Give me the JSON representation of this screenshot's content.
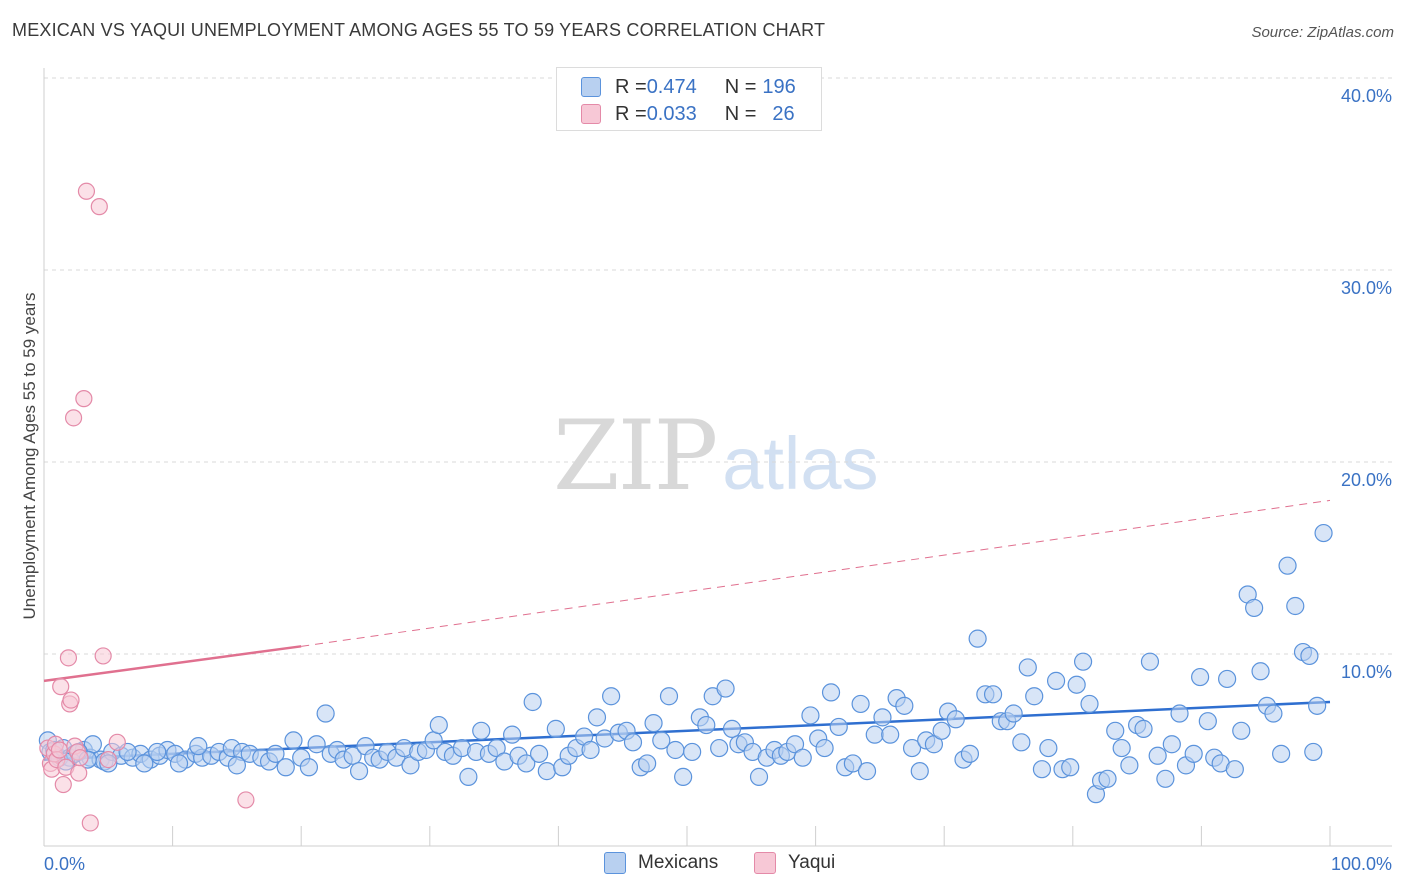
{
  "title": "MEXICAN VS YAQUI UNEMPLOYMENT AMONG AGES 55 TO 59 YEARS CORRELATION CHART",
  "source": "Source: ZipAtlas.com",
  "watermark": {
    "zip": "ZIP",
    "atlas": "atlas"
  },
  "legend": {
    "rows": [
      {
        "r_label": "R = ",
        "r_value": "0.474",
        "n_label": "N = ",
        "n_value": "196"
      },
      {
        "r_label": "R = ",
        "r_value": "0.033",
        "n_label": "N = ",
        "n_value": "26"
      }
    ]
  },
  "bottom_legend": {
    "mexicans": "Mexicans",
    "yaqui": "Yaqui"
  },
  "colors": {
    "blue_fill": "#b8d0f0",
    "blue_stroke": "#5b93dc",
    "blue_line": "#2f6fd0",
    "pink_fill": "#f7c8d6",
    "pink_stroke": "#e48aa8",
    "pink_line": "#e0708f",
    "grid": "#d8d8d8",
    "axis_label": "#3a72c4"
  },
  "chart_data": {
    "type": "scatter",
    "title": "MEXICAN VS YAQUI UNEMPLOYMENT AMONG AGES 55 TO 59 YEARS CORRELATION CHART",
    "xlabel": "",
    "ylabel": "Unemployment Among Ages 55 to 59 years",
    "xlim": [
      0,
      100
    ],
    "ylim": [
      0,
      40
    ],
    "x_tick_labels": [
      "0.0%",
      "100.0%"
    ],
    "y_ticks": [
      10,
      20,
      30,
      40
    ],
    "y_tick_labels": [
      "10.0%",
      "20.0%",
      "30.0%",
      "40.0%"
    ],
    "series": [
      {
        "name": "Mexicans",
        "color": "blue",
        "R": 0.474,
        "N": 196,
        "trend": {
          "x": [
            0,
            100
          ],
          "y": [
            4.5,
            7.5
          ],
          "dashed_extension": false
        },
        "points": [
          [
            0.3,
            5.5
          ],
          [
            0.5,
            4.9
          ],
          [
            0.8,
            5.0
          ],
          [
            1.2,
            4.6
          ],
          [
            1.5,
            5.1
          ],
          [
            2.0,
            4.6
          ],
          [
            2.4,
            4.8
          ],
          [
            3.1,
            5.0
          ],
          [
            3.6,
            4.6
          ],
          [
            3.8,
            5.3
          ],
          [
            4.4,
            4.5
          ],
          [
            4.7,
            4.4
          ],
          [
            5.3,
            4.9
          ],
          [
            6.0,
            4.7
          ],
          [
            6.9,
            4.6
          ],
          [
            7.5,
            4.8
          ],
          [
            8.3,
            4.5
          ],
          [
            9.0,
            4.7
          ],
          [
            9.6,
            5.0
          ],
          [
            10.2,
            4.8
          ],
          [
            11.0,
            4.5
          ],
          [
            11.8,
            4.8
          ],
          [
            12.3,
            4.6
          ],
          [
            13.0,
            4.7
          ],
          [
            13.6,
            4.9
          ],
          [
            14.3,
            4.6
          ],
          [
            14.6,
            5.1
          ],
          [
            15.4,
            4.9
          ],
          [
            16.0,
            4.8
          ],
          [
            16.9,
            4.6
          ],
          [
            17.5,
            4.4
          ],
          [
            18.0,
            4.8
          ],
          [
            18.8,
            4.1
          ],
          [
            19.4,
            5.5
          ],
          [
            20.0,
            4.6
          ],
          [
            20.6,
            4.1
          ],
          [
            21.2,
            5.3
          ],
          [
            21.9,
            6.9
          ],
          [
            22.3,
            4.8
          ],
          [
            22.8,
            5.0
          ],
          [
            23.3,
            4.5
          ],
          [
            24.0,
            4.7
          ],
          [
            24.5,
            3.9
          ],
          [
            25.0,
            5.2
          ],
          [
            25.6,
            4.6
          ],
          [
            26.1,
            4.5
          ],
          [
            26.7,
            4.9
          ],
          [
            27.4,
            4.6
          ],
          [
            28.0,
            5.1
          ],
          [
            28.5,
            4.2
          ],
          [
            29.1,
            4.9
          ],
          [
            29.7,
            5.0
          ],
          [
            30.3,
            5.5
          ],
          [
            30.7,
            6.3
          ],
          [
            31.2,
            4.9
          ],
          [
            31.8,
            4.7
          ],
          [
            32.5,
            5.1
          ],
          [
            33.0,
            3.6
          ],
          [
            33.6,
            4.9
          ],
          [
            34.0,
            6.0
          ],
          [
            34.6,
            4.8
          ],
          [
            35.2,
            5.1
          ],
          [
            35.8,
            4.4
          ],
          [
            36.4,
            5.8
          ],
          [
            36.9,
            4.7
          ],
          [
            37.5,
            4.3
          ],
          [
            38.0,
            7.5
          ],
          [
            38.5,
            4.8
          ],
          [
            39.1,
            3.9
          ],
          [
            39.8,
            6.1
          ],
          [
            40.3,
            4.1
          ],
          [
            40.8,
            4.7
          ],
          [
            41.4,
            5.1
          ],
          [
            42.0,
            5.7
          ],
          [
            42.5,
            5.0
          ],
          [
            43.0,
            6.7
          ],
          [
            43.6,
            5.6
          ],
          [
            44.1,
            7.8
          ],
          [
            44.7,
            5.9
          ],
          [
            45.3,
            6.0
          ],
          [
            45.8,
            5.4
          ],
          [
            46.4,
            4.1
          ],
          [
            46.9,
            4.3
          ],
          [
            47.4,
            6.4
          ],
          [
            48.0,
            5.5
          ],
          [
            48.6,
            7.8
          ],
          [
            49.1,
            5.0
          ],
          [
            49.7,
            3.6
          ],
          [
            50.4,
            4.9
          ],
          [
            51.0,
            6.7
          ],
          [
            51.5,
            6.3
          ],
          [
            52.0,
            7.8
          ],
          [
            52.5,
            5.1
          ],
          [
            53.0,
            8.2
          ],
          [
            53.5,
            6.1
          ],
          [
            54.0,
            5.3
          ],
          [
            54.5,
            5.4
          ],
          [
            55.1,
            4.9
          ],
          [
            55.6,
            3.6
          ],
          [
            56.2,
            4.6
          ],
          [
            56.8,
            5.0
          ],
          [
            57.3,
            4.7
          ],
          [
            57.8,
            4.9
          ],
          [
            58.4,
            5.3
          ],
          [
            59.0,
            4.6
          ],
          [
            59.6,
            6.8
          ],
          [
            60.2,
            5.6
          ],
          [
            60.7,
            5.1
          ],
          [
            61.2,
            8.0
          ],
          [
            61.8,
            6.2
          ],
          [
            62.3,
            4.1
          ],
          [
            62.9,
            4.3
          ],
          [
            63.5,
            7.4
          ],
          [
            64.0,
            3.9
          ],
          [
            64.6,
            5.8
          ],
          [
            65.2,
            6.7
          ],
          [
            65.8,
            5.8
          ],
          [
            66.3,
            7.7
          ],
          [
            66.9,
            7.3
          ],
          [
            67.5,
            5.1
          ],
          [
            68.1,
            3.9
          ],
          [
            68.6,
            5.5
          ],
          [
            69.2,
            5.3
          ],
          [
            69.8,
            6.0
          ],
          [
            70.3,
            7.0
          ],
          [
            70.9,
            6.6
          ],
          [
            71.5,
            4.5
          ],
          [
            72.0,
            4.8
          ],
          [
            72.6,
            10.8
          ],
          [
            73.2,
            7.9
          ],
          [
            73.8,
            7.9
          ],
          [
            74.4,
            6.5
          ],
          [
            74.9,
            6.5
          ],
          [
            75.4,
            6.9
          ],
          [
            76.0,
            5.4
          ],
          [
            76.5,
            9.3
          ],
          [
            77.0,
            7.8
          ],
          [
            77.6,
            4.0
          ],
          [
            78.1,
            5.1
          ],
          [
            78.7,
            8.6
          ],
          [
            79.2,
            4.0
          ],
          [
            79.8,
            4.1
          ],
          [
            80.3,
            8.4
          ],
          [
            80.8,
            9.6
          ],
          [
            81.3,
            7.4
          ],
          [
            81.8,
            2.7
          ],
          [
            82.2,
            3.4
          ],
          [
            82.7,
            3.5
          ],
          [
            83.3,
            6.0
          ],
          [
            83.8,
            5.1
          ],
          [
            84.4,
            4.2
          ],
          [
            85.0,
            6.3
          ],
          [
            85.5,
            6.1
          ],
          [
            86.0,
            9.6
          ],
          [
            86.6,
            4.7
          ],
          [
            87.2,
            3.5
          ],
          [
            87.7,
            5.3
          ],
          [
            88.3,
            6.9
          ],
          [
            88.8,
            4.2
          ],
          [
            89.4,
            4.8
          ],
          [
            89.9,
            8.8
          ],
          [
            90.5,
            6.5
          ],
          [
            91.0,
            4.6
          ],
          [
            91.5,
            4.3
          ],
          [
            92.0,
            8.7
          ],
          [
            92.6,
            4.0
          ],
          [
            93.1,
            6.0
          ],
          [
            93.6,
            13.1
          ],
          [
            94.1,
            12.4
          ],
          [
            94.6,
            9.1
          ],
          [
            95.1,
            7.3
          ],
          [
            95.6,
            6.9
          ],
          [
            96.2,
            4.8
          ],
          [
            96.7,
            14.6
          ],
          [
            97.3,
            12.5
          ],
          [
            97.9,
            10.1
          ],
          [
            98.4,
            9.9
          ],
          [
            99.0,
            7.3
          ],
          [
            99.5,
            16.3
          ],
          [
            98.7,
            4.9
          ],
          [
            1.7,
            4.4
          ],
          [
            2.7,
            4.9
          ],
          [
            3.4,
            4.5
          ],
          [
            5.0,
            4.3
          ],
          [
            6.5,
            4.9
          ],
          [
            7.8,
            4.3
          ],
          [
            8.8,
            4.9
          ],
          [
            10.5,
            4.3
          ],
          [
            12.0,
            5.2
          ],
          [
            15.0,
            4.2
          ]
        ]
      },
      {
        "name": "Yaqui",
        "color": "pink",
        "R": 0.033,
        "N": 26,
        "trend": {
          "x": [
            0,
            20
          ],
          "y": [
            8.6,
            10.4
          ],
          "dashed_extension": {
            "x": [
              20,
              100
            ],
            "y": [
              10.4,
              18.0
            ]
          }
        },
        "points": [
          [
            0.3,
            5.1
          ],
          [
            0.5,
            4.3
          ],
          [
            0.6,
            4.0
          ],
          [
            0.8,
            4.8
          ],
          [
            0.9,
            5.3
          ],
          [
            1.0,
            4.5
          ],
          [
            1.2,
            5.0
          ],
          [
            1.3,
            8.3
          ],
          [
            1.5,
            3.2
          ],
          [
            1.7,
            4.1
          ],
          [
            1.9,
            9.8
          ],
          [
            2.0,
            7.4
          ],
          [
            2.1,
            7.6
          ],
          [
            2.3,
            22.3
          ],
          [
            2.4,
            5.2
          ],
          [
            2.6,
            4.9
          ],
          [
            2.7,
            3.8
          ],
          [
            2.8,
            4.6
          ],
          [
            3.1,
            23.3
          ],
          [
            3.3,
            34.1
          ],
          [
            3.6,
            1.2
          ],
          [
            4.3,
            33.3
          ],
          [
            4.6,
            9.9
          ],
          [
            5.0,
            4.5
          ],
          [
            5.7,
            5.4
          ],
          [
            15.7,
            2.4
          ]
        ]
      }
    ]
  }
}
